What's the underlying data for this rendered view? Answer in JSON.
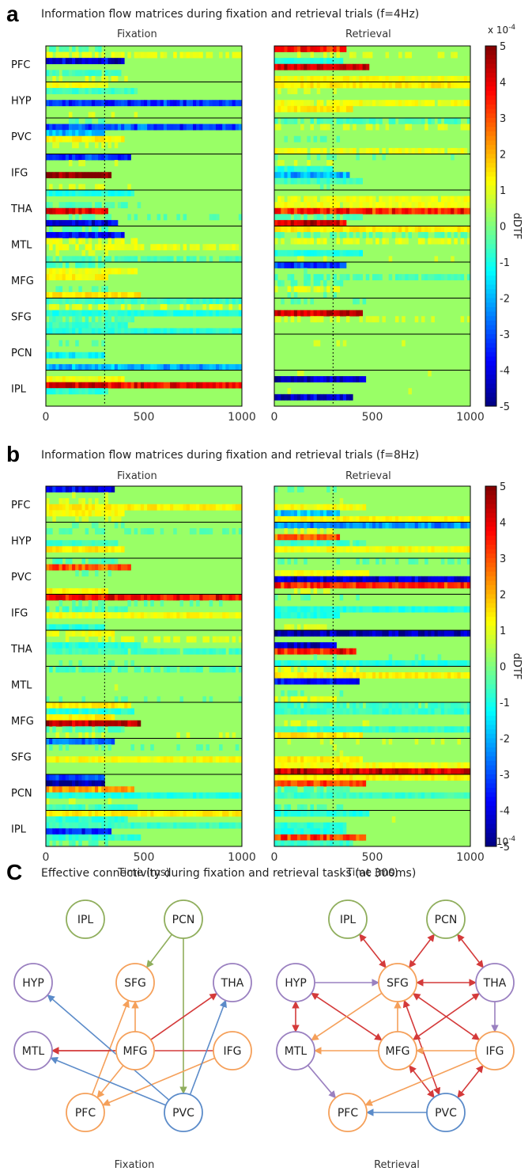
{
  "panel_a": {
    "letter": "a",
    "title": "Information flow matrices during fixation and retrieval trials (f=4Hz)",
    "subtitles": [
      "Fixation",
      "Retrieval"
    ],
    "scale_label": "x 10",
    "scale_exp": "-4"
  },
  "panel_b": {
    "letter": "b",
    "title": "Information flow matrices during fixation and retrieval trials (f=8Hz)",
    "subtitles": [
      "Fixation",
      "Retrieval"
    ],
    "scale_label": "x 10",
    "scale_exp": "-4"
  },
  "panel_c": {
    "letter": "C",
    "title": "Effective connectivity during fixation and retrieval tasks (at 300ms)",
    "captions": [
      "Fixation",
      "Retrieval"
    ]
  },
  "chart_data": [
    {
      "type": "heatmap",
      "title": "Information flow matrices during fixation and retrieval trials (f=4Hz)",
      "panels": [
        "Fixation",
        "Retrieval"
      ],
      "rows": [
        "PFC",
        "HYP",
        "PVC",
        "IFG",
        "THA",
        "MTL",
        "MFG",
        "SFG",
        "PCN",
        "IPL"
      ],
      "x_ticks": [
        "0",
        "500",
        "1000"
      ],
      "xlim": [
        0,
        1000
      ],
      "marker_ms": 300,
      "colorbar": {
        "label": "dDTF",
        "ticks": [
          "5",
          "4",
          "3",
          "2",
          "1",
          "0",
          "-1",
          "-2",
          "-3",
          "-4",
          "-5"
        ],
        "range": [
          -5,
          5
        ],
        "scale": "x 10^-4"
      }
    },
    {
      "type": "heatmap",
      "title": "Information flow matrices during fixation and retrieval trials (f=8Hz)",
      "panels": [
        "Fixation",
        "Retrieval"
      ],
      "rows": [
        "PFC",
        "HYP",
        "PVC",
        "IFG",
        "THA",
        "MTL",
        "MFG",
        "SFG",
        "PCN",
        "IPL"
      ],
      "x_ticks": [
        "0",
        "500",
        "1000"
      ],
      "xlim": [
        0,
        1000
      ],
      "xlabel": "Time (ms)",
      "marker_ms": 300,
      "colorbar": {
        "label": "dDTF",
        "ticks": [
          "5",
          "4",
          "3",
          "2",
          "1",
          "0",
          "-1",
          "-2",
          "-3",
          "-4",
          "-5"
        ],
        "range": [
          -5,
          5
        ],
        "scale": "x 10^-4"
      }
    }
  ],
  "graph": {
    "colors": {
      "purple": "#9A80C0",
      "orange": "#F5A05A",
      "green": "#8FAE5C",
      "red": "#D43A3A",
      "blue": "#5B8BC9"
    },
    "nodes": {
      "IPL": {
        "label": "IPL",
        "group": "green"
      },
      "PCN": {
        "label": "PCN",
        "group": "green"
      },
      "HYP": {
        "label": "HYP",
        "group": "purple"
      },
      "SFG": {
        "label": "SFG",
        "group": "orange"
      },
      "THA": {
        "label": "THA",
        "group": "purple"
      },
      "MTL": {
        "label": "MTL",
        "group": "purple"
      },
      "MFG": {
        "label": "MFG",
        "group": "orange"
      },
      "IFG": {
        "label": "IFG",
        "group": "orange"
      },
      "PFC": {
        "label": "PFC",
        "group": "orange"
      },
      "PVC": {
        "label": "PVC",
        "group": "blue"
      }
    },
    "fixation_edges": [
      {
        "from": "PCN",
        "to": "SFG",
        "color": "green"
      },
      {
        "from": "PCN",
        "to": "PVC",
        "color": "green"
      },
      {
        "from": "MFG",
        "to": "SFG",
        "color": "orange"
      },
      {
        "from": "PFC",
        "to": "SFG",
        "color": "orange"
      },
      {
        "from": "IFG",
        "to": "PFC",
        "color": "orange"
      },
      {
        "from": "MFG",
        "to": "PFC",
        "color": "orange"
      },
      {
        "from": "MFG",
        "to": "THA",
        "color": "red"
      },
      {
        "from": "MFG",
        "to": "MTL",
        "color": "red"
      },
      {
        "from": "IFG",
        "to": "MTL",
        "color": "red"
      },
      {
        "from": "PVC",
        "to": "HYP",
        "color": "blue"
      },
      {
        "from": "PVC",
        "to": "MTL",
        "color": "blue"
      },
      {
        "from": "PVC",
        "to": "THA",
        "color": "blue"
      }
    ],
    "retrieval_edges": [
      {
        "from": "IPL",
        "to": "SFG",
        "color": "red",
        "both": true
      },
      {
        "from": "PCN",
        "to": "SFG",
        "color": "red",
        "both": true
      },
      {
        "from": "PCN",
        "to": "THA",
        "color": "red",
        "both": true
      },
      {
        "from": "HYP",
        "to": "SFG",
        "color": "purple"
      },
      {
        "from": "THA",
        "to": "SFG",
        "color": "red",
        "both": true
      },
      {
        "from": "HYP",
        "to": "MTL",
        "color": "red",
        "both": true
      },
      {
        "from": "THA",
        "to": "IFG",
        "color": "purple"
      },
      {
        "from": "HYP",
        "to": "MFG",
        "color": "red",
        "both": true
      },
      {
        "from": "MFG",
        "to": "SFG",
        "color": "orange"
      },
      {
        "from": "SFG",
        "to": "MTL",
        "color": "orange"
      },
      {
        "from": "SFG",
        "to": "IFG",
        "color": "red",
        "both": true
      },
      {
        "from": "SFG",
        "to": "PVC",
        "color": "red",
        "both": true
      },
      {
        "from": "MFG",
        "to": "MTL",
        "color": "orange"
      },
      {
        "from": "IFG",
        "to": "MFG",
        "color": "orange"
      },
      {
        "from": "MTL",
        "to": "PFC",
        "color": "purple"
      },
      {
        "from": "MFG",
        "to": "PVC",
        "color": "red",
        "both": true
      },
      {
        "from": "THA",
        "to": "MFG",
        "color": "red",
        "both": true
      },
      {
        "from": "IFG",
        "to": "PFC",
        "color": "orange"
      },
      {
        "from": "IFG",
        "to": "PVC",
        "color": "red",
        "both": true
      },
      {
        "from": "PVC",
        "to": "PFC",
        "color": "blue"
      }
    ]
  }
}
